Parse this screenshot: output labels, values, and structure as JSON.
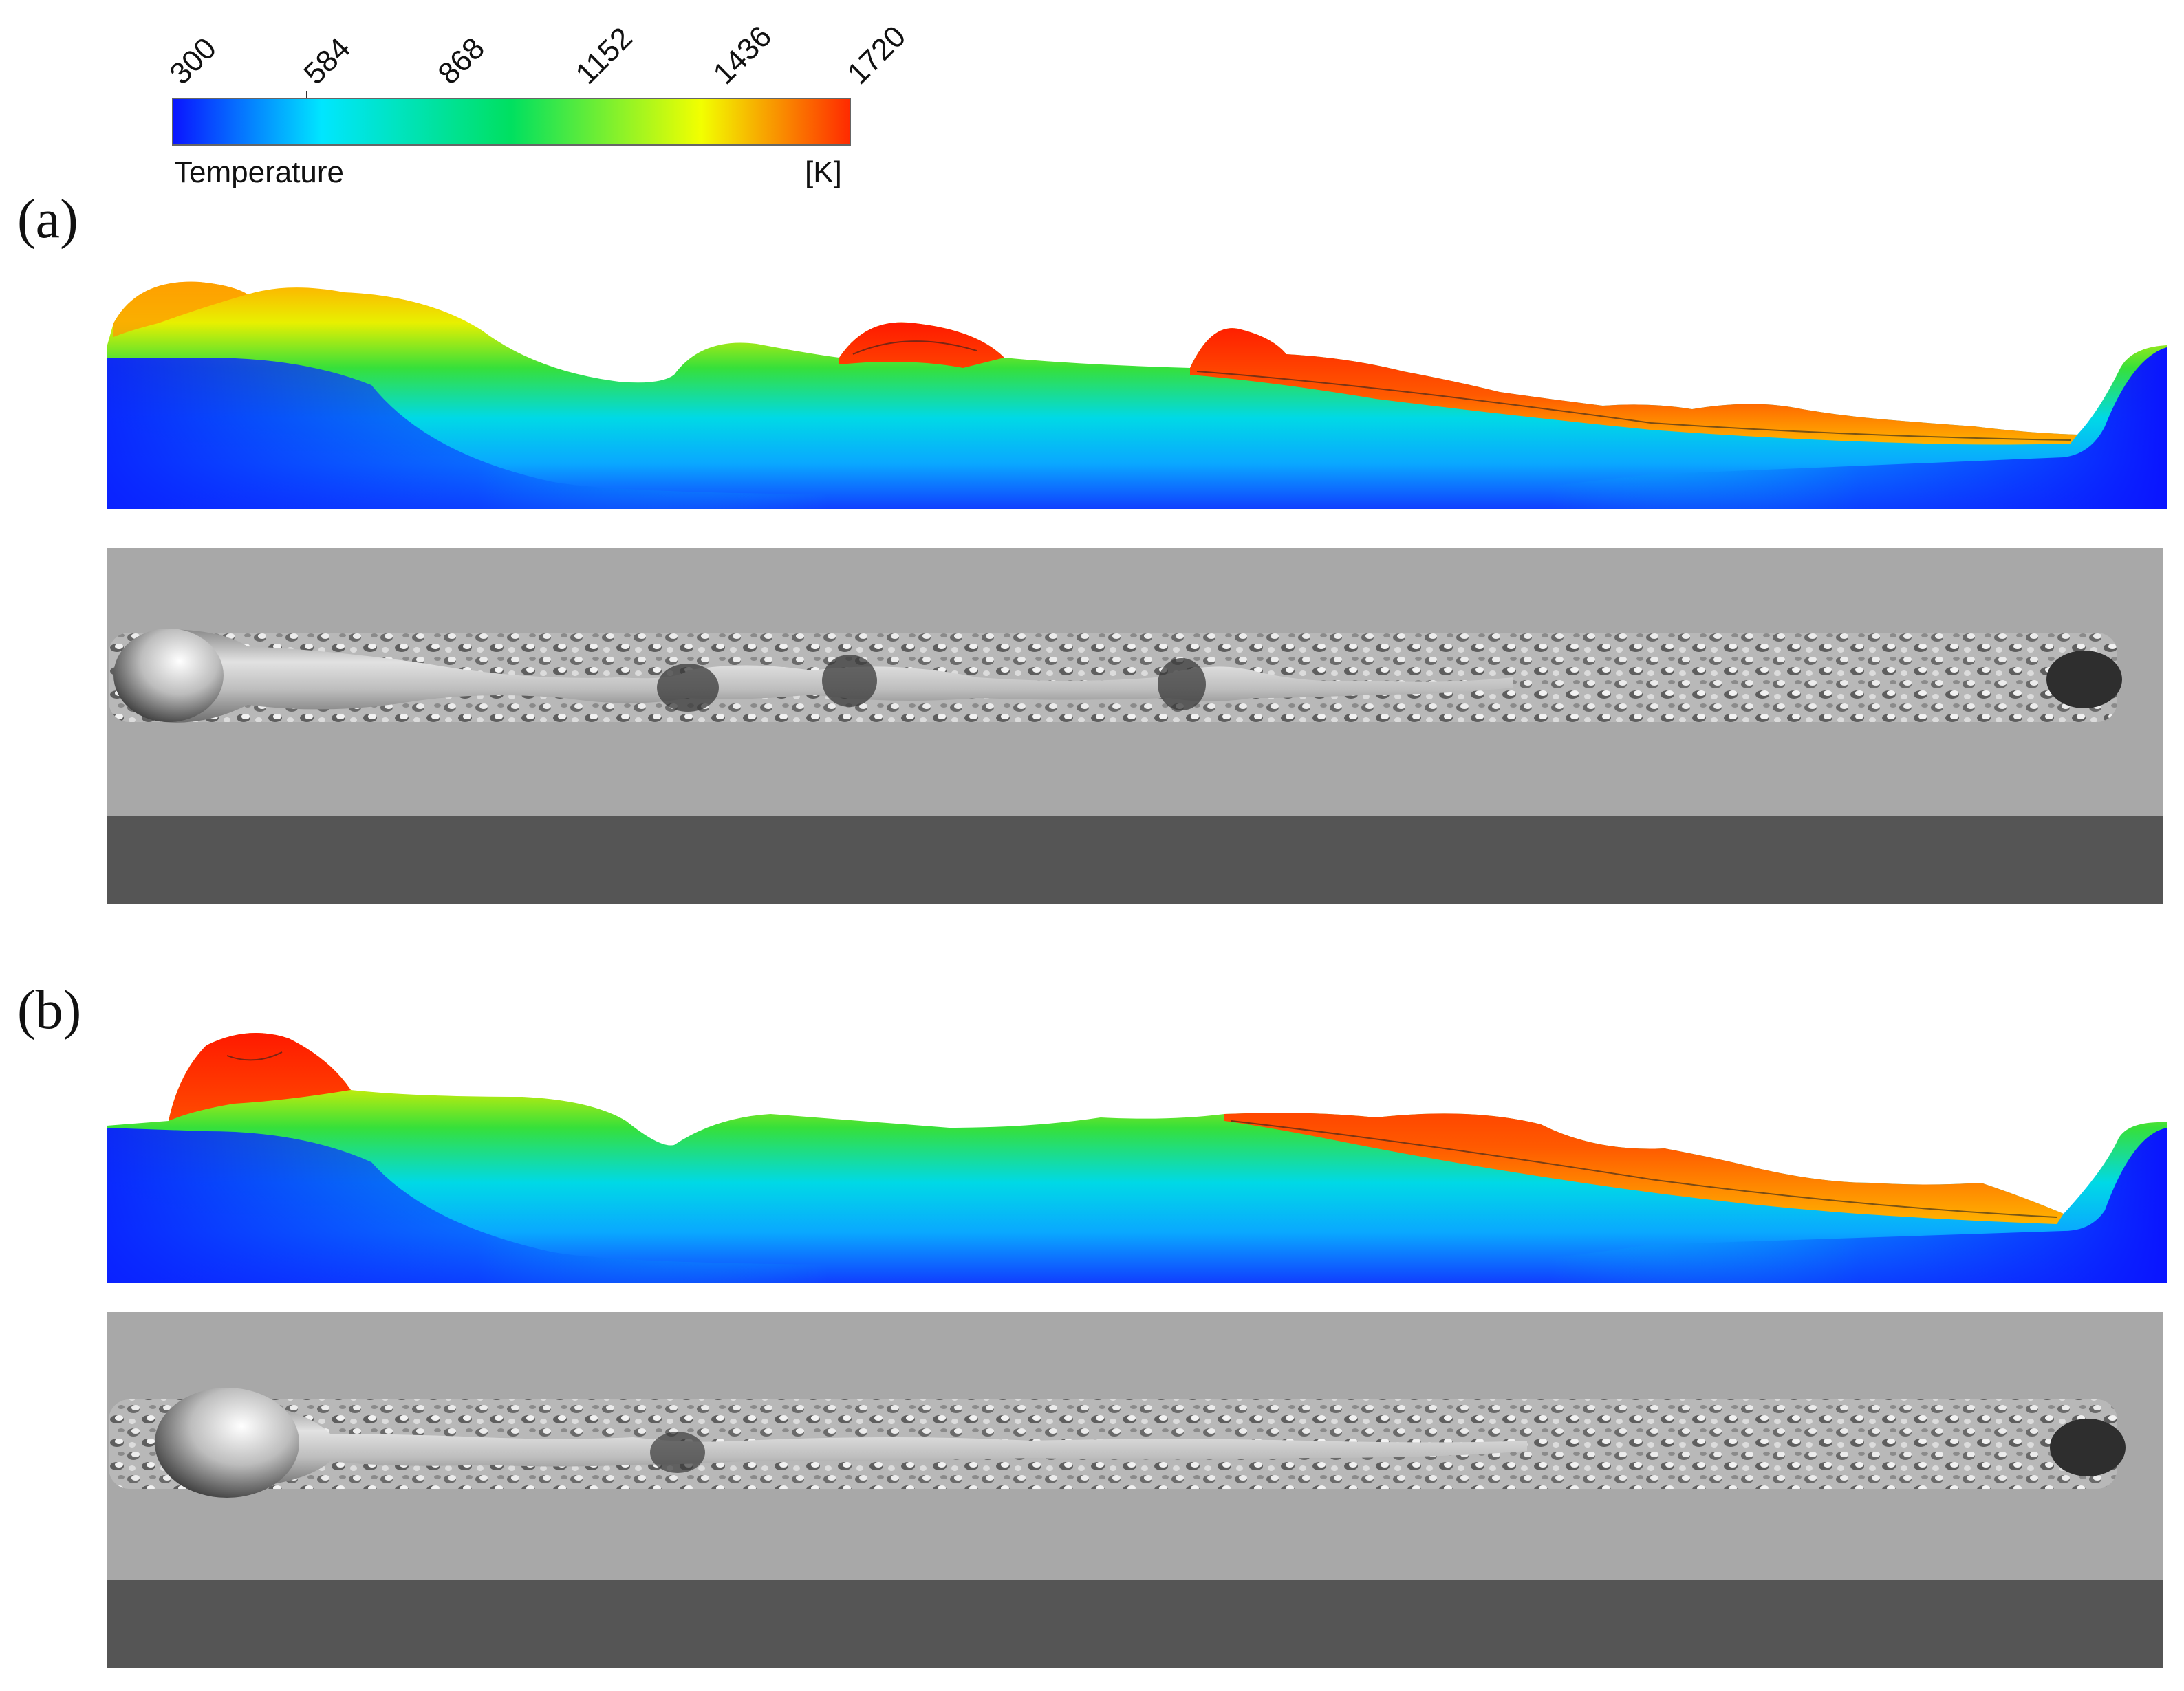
{
  "colorbar": {
    "ticks": [
      "300",
      "584",
      "868",
      "1152",
      "1436",
      "1720"
    ],
    "label": "Temperature",
    "unit": "[K]",
    "colors": [
      "#0a14ff",
      "#00e6ff",
      "#00e060",
      "#f2ff00",
      "#ff2a00"
    ]
  },
  "panels": [
    {
      "label": "(a)"
    },
    {
      "label": "(b)"
    }
  ],
  "colors": {
    "substrate_light": "#a8a8a8",
    "substrate_dark": "#555555",
    "track_surface": "#bdbdbd"
  }
}
